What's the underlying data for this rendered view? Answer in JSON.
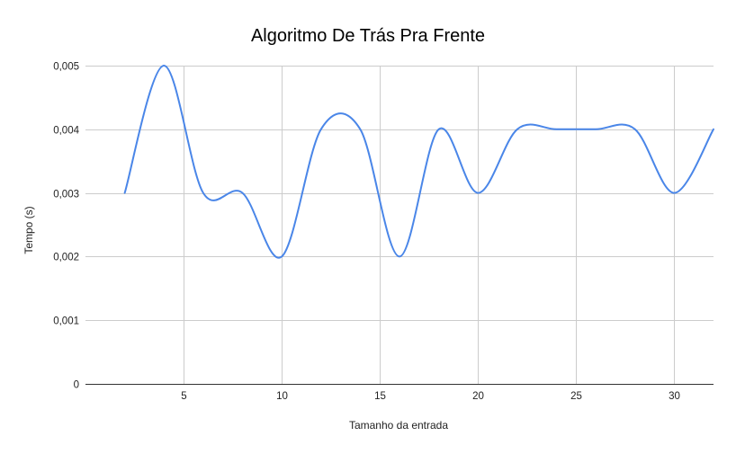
{
  "chart_data": {
    "type": "line",
    "title": "Algoritmo De Trás Pra Frente",
    "xlabel": "Tamanho da entrada",
    "ylabel": "Tempo (s)",
    "xlim": [
      0,
      32
    ],
    "ylim": [
      0,
      0.005
    ],
    "x_ticks": [
      5,
      10,
      15,
      20,
      25,
      30
    ],
    "x_tick_labels": [
      "5",
      "10",
      "15",
      "20",
      "25",
      "30"
    ],
    "y_ticks": [
      0,
      0.001,
      0.002,
      0.003,
      0.004,
      0.005
    ],
    "y_tick_labels": [
      "0",
      "0,001",
      "0,002",
      "0,003",
      "0,004",
      "0,005"
    ],
    "grid": true,
    "smooth": true,
    "series": [
      {
        "color": "#4a86e8",
        "points": [
          [
            2,
            0.003
          ],
          [
            4,
            0.005
          ],
          [
            6,
            0.003
          ],
          [
            8,
            0.003
          ],
          [
            10,
            0.002
          ],
          [
            12,
            0.004
          ],
          [
            14,
            0.004
          ],
          [
            16,
            0.002
          ],
          [
            18,
            0.004
          ],
          [
            20,
            0.003
          ],
          [
            22,
            0.004
          ],
          [
            24,
            0.004
          ],
          [
            26,
            0.004
          ],
          [
            28,
            0.004
          ],
          [
            30,
            0.003
          ],
          [
            32,
            0.004
          ]
        ]
      }
    ]
  }
}
